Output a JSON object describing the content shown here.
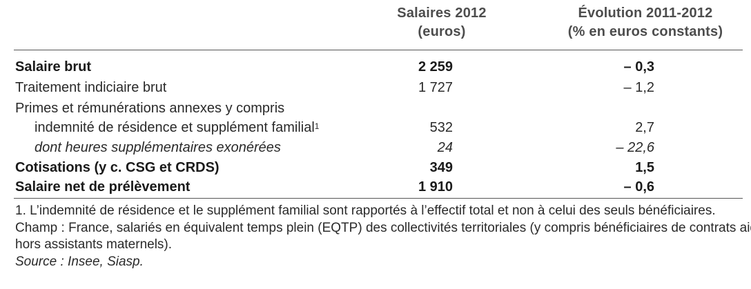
{
  "header": {
    "col1_line1": "Salaires 2012",
    "col1_line2": "(euros)",
    "col2_line1": "Évolution 2011-2012",
    "col2_line2": "(% en euros constants)"
  },
  "rows": [
    {
      "label": "Salaire brut",
      "value": "2 259",
      "evolution": "– 0,3",
      "style": "bold"
    },
    {
      "label": "Traitement indiciaire brut",
      "value": "1 727",
      "evolution": "– 1,2",
      "style": "normal"
    },
    {
      "label": "Primes et rémunérations annexes y compris",
      "value": "",
      "evolution": "",
      "style": "normal"
    },
    {
      "label": "indemnité de résidence et supplément familial",
      "footnote": "1",
      "value": "532",
      "evolution": "2,7",
      "style": "indent"
    },
    {
      "label": "dont heures supplémentaires exonérées",
      "value": "24",
      "evolution": "– 22,6",
      "style": "italic"
    },
    {
      "label": "Cotisations (y c. CSG et CRDS)",
      "value": "349",
      "evolution": "1,5",
      "style": "bold"
    },
    {
      "label": "Salaire net de prélèvement",
      "value": "1 910",
      "evolution": "– 0,6",
      "style": "bold"
    }
  ],
  "notes": {
    "footnote_1": "1. L’indemnité de résidence et le supplément familial sont rapportés à l’effectif total et non à celui des seuls bénéficiaires.",
    "champ_line1": "Champ : France, salariés en équivalent temps plein (EQTP) des collectivités territoriales (y compris bénéficiaires de contrats aidés,",
    "champ_line2": "hors assistants maternels).",
    "source": "Source : Insee, Siasp."
  }
}
